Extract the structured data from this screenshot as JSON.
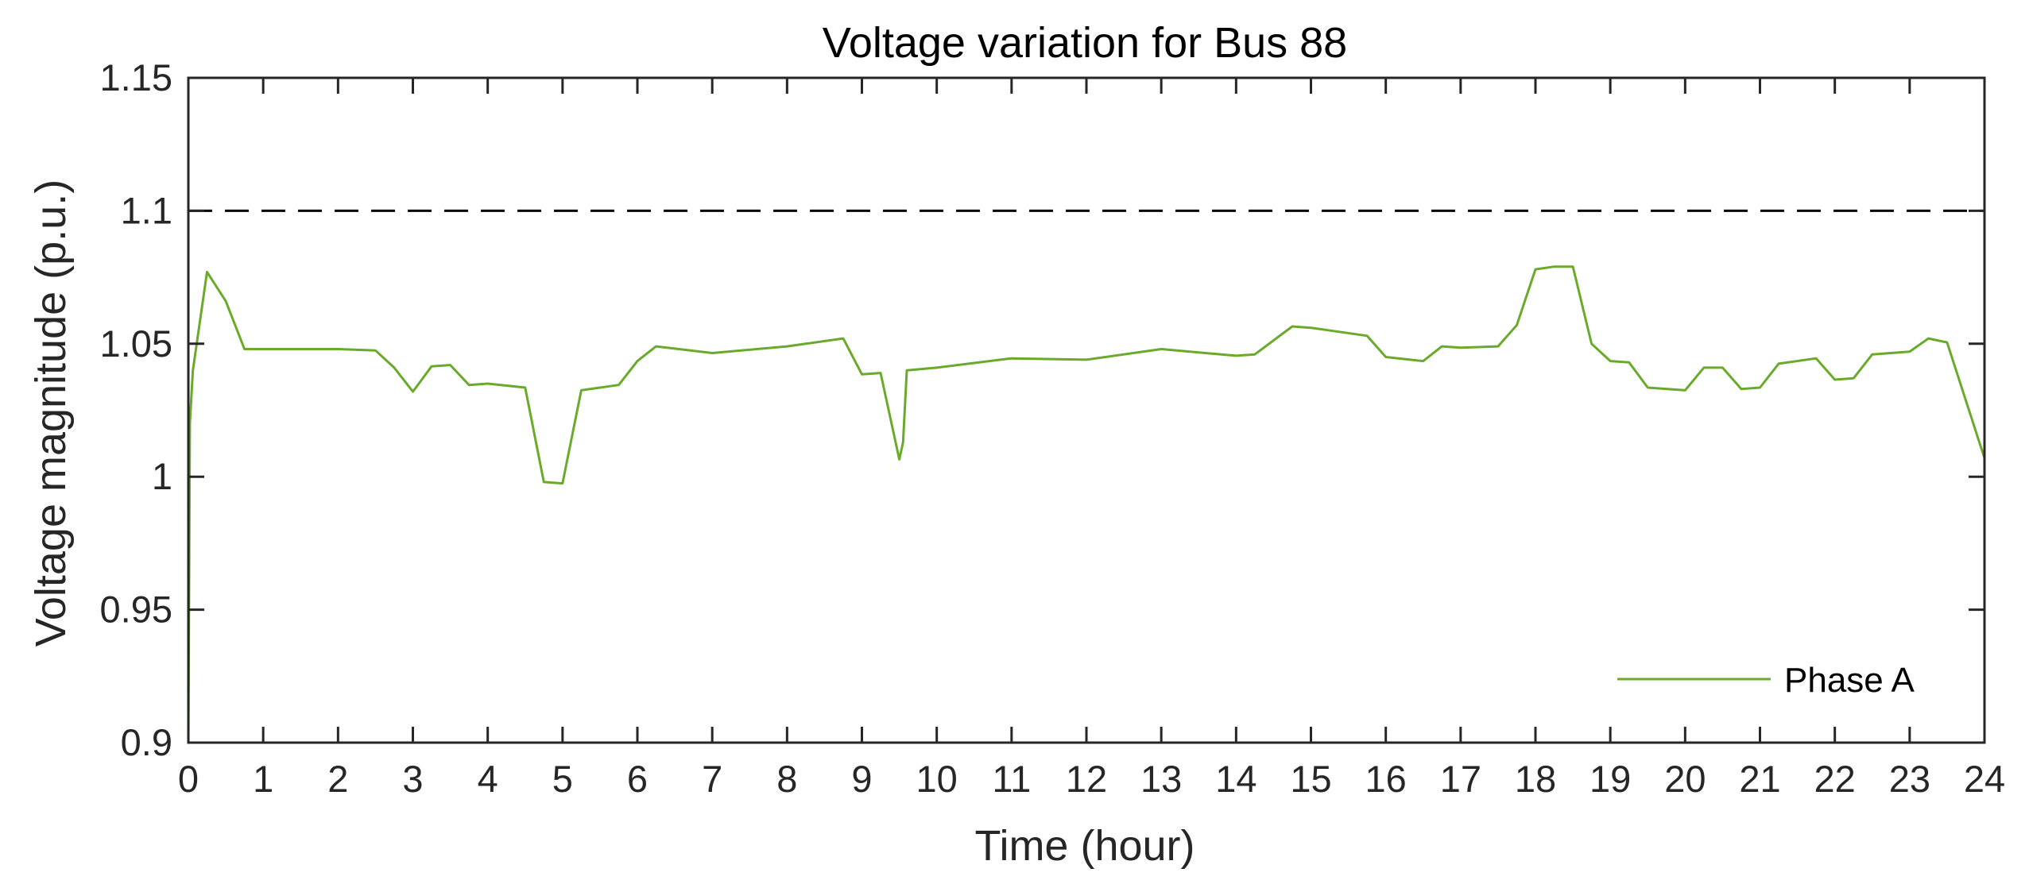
{
  "chart_data": {
    "type": "line",
    "title": "Voltage variation for Bus 88",
    "xlabel": "Time (hour)",
    "ylabel": "Voltage magnitude (p.u.)",
    "xlim": [
      0,
      24
    ],
    "ylim": [
      0.9,
      1.15
    ],
    "xticks": [
      0,
      1,
      2,
      3,
      4,
      5,
      6,
      7,
      8,
      9,
      10,
      11,
      12,
      13,
      14,
      15,
      16,
      17,
      18,
      19,
      20,
      21,
      22,
      23,
      24
    ],
    "yticks": [
      0.9,
      0.95,
      1,
      1.05,
      1.1,
      1.15
    ],
    "ytick_labels": [
      "0.9",
      "0.95",
      "1",
      "1.05",
      "1.1",
      "1.15"
    ],
    "grid": false,
    "legend_position": "bottom-right",
    "reference_line": {
      "y": 1.1,
      "style": "dashed",
      "color": "#000000"
    },
    "series": [
      {
        "name": "Phase A",
        "color": "#6aaa2a",
        "x": [
          0,
          0.02,
          0.06,
          0.25,
          0.5,
          0.75,
          1.0,
          2.0,
          2.5,
          2.75,
          3.0,
          3.25,
          3.5,
          3.75,
          4.0,
          4.5,
          4.75,
          5.0,
          5.25,
          5.75,
          6.0,
          6.25,
          7.0,
          8.0,
          8.75,
          9.0,
          9.25,
          9.5,
          9.55,
          9.6,
          10.0,
          11.0,
          12.0,
          13.0,
          14.0,
          14.25,
          14.75,
          15.0,
          15.75,
          16.0,
          16.5,
          16.75,
          17.0,
          17.5,
          17.75,
          18.0,
          18.25,
          18.5,
          18.75,
          19.0,
          19.25,
          19.5,
          20.0,
          20.25,
          20.5,
          20.75,
          21.0,
          21.25,
          21.75,
          22.0,
          22.25,
          22.5,
          23.0,
          23.25,
          23.5,
          24.0
        ],
        "y": [
          0.9,
          1.02,
          1.04,
          1.077,
          1.066,
          1.048,
          1.048,
          1.048,
          1.0475,
          1.041,
          1.032,
          1.0415,
          1.042,
          1.0345,
          1.035,
          1.0335,
          0.998,
          0.9975,
          1.0325,
          1.0345,
          1.0435,
          1.049,
          1.0465,
          1.049,
          1.052,
          1.0385,
          1.039,
          1.0065,
          1.013,
          1.04,
          1.041,
          1.0445,
          1.044,
          1.048,
          1.0455,
          1.046,
          1.0565,
          1.056,
          1.053,
          1.045,
          1.0435,
          1.049,
          1.0485,
          1.049,
          1.057,
          1.078,
          1.079,
          1.079,
          1.05,
          1.0435,
          1.043,
          1.0335,
          1.0325,
          1.041,
          1.041,
          1.033,
          1.0335,
          1.0425,
          1.0445,
          1.0365,
          1.037,
          1.046,
          1.047,
          1.052,
          1.0505,
          1.007
        ]
      }
    ]
  }
}
